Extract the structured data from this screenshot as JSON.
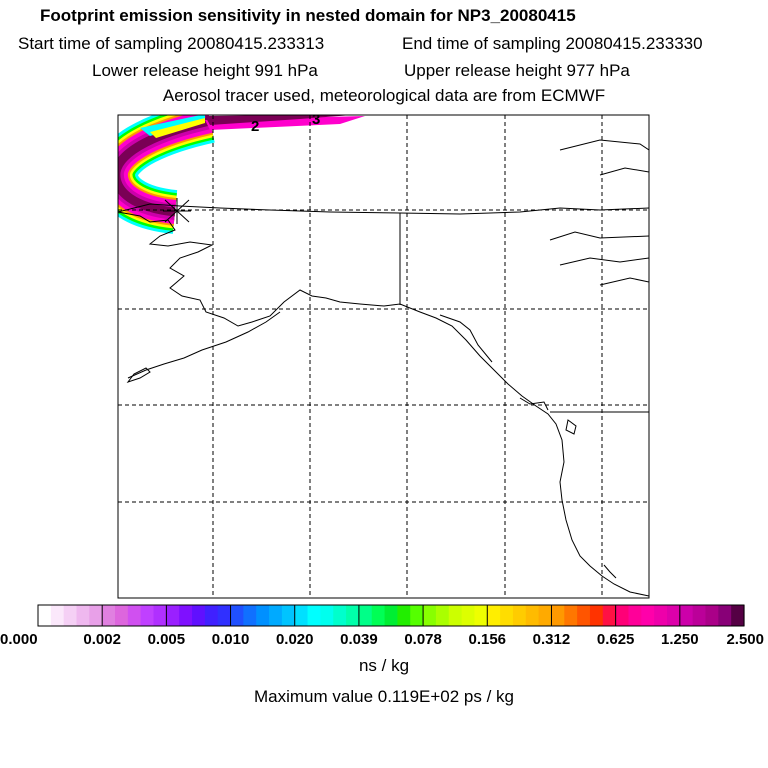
{
  "header": {
    "title": "Footprint emission sensitivity in nested domain for NP3_20080415",
    "start_label": "Start time of sampling 20080415.233313",
    "end_label": "End time of sampling 20080415.233330",
    "lower_label": "Lower release height  991 hPa",
    "upper_label": "Upper release height  977 hPa",
    "tracer_label": "Aerosol tracer used, meteorological data are from ECMWF"
  },
  "map": {
    "contour_labels": [
      "2",
      "3"
    ],
    "release_marker": "receptor-cross-icon",
    "plume_colors": [
      "#ff00cc",
      "#cc00aa",
      "#990077",
      "#66003f",
      "#00ffff",
      "#00ff00",
      "#ffff00",
      "#ff9900",
      "#ff0000",
      "#9900ff",
      "#3333ff"
    ]
  },
  "colorbar": {
    "tick_labels": [
      "0.000",
      "0.002",
      "0.005",
      "0.010",
      "0.020",
      "0.039",
      "0.078",
      "0.156",
      "0.312",
      "0.625",
      "1.250",
      "2.500"
    ],
    "segment_colors": [
      [
        "#ffffff",
        "#fbe8fb",
        "#f5d0f5",
        "#efb8ef",
        "#e8a0e8"
      ],
      [
        "#e080e0",
        "#dd66dd",
        "#d050f0",
        "#c040ff",
        "#b030ff"
      ],
      [
        "#9a20ff",
        "#7f10ff",
        "#6010ff",
        "#4020ff",
        "#3030ff"
      ],
      [
        "#2050ff",
        "#1070ff",
        "#0090ff",
        "#00aaff",
        "#00c4ff"
      ],
      [
        "#00e0ff",
        "#00ffff",
        "#00ffee",
        "#00ffcc",
        "#00ffaa"
      ],
      [
        "#00ff88",
        "#00ff55",
        "#00ee33",
        "#22ee00",
        "#55ff00"
      ],
      [
        "#88ff00",
        "#aaff00",
        "#ccff00",
        "#ddff00",
        "#eeff00"
      ],
      [
        "#ffee00",
        "#ffdd00",
        "#ffcc00",
        "#ffbb00",
        "#ffaa00"
      ],
      [
        "#ff9900",
        "#ff7700",
        "#ff5500",
        "#ff3300",
        "#ff1144"
      ],
      [
        "#ff0077",
        "#ff0099",
        "#ff00aa",
        "#ee00aa",
        "#dd00aa"
      ],
      [
        "#cc00aa",
        "#bb0099",
        "#aa0088",
        "#880077",
        "#550044"
      ]
    ],
    "unit": "ns / kg",
    "max_value_label": "Maximum value  0.119E+02 ps / kg"
  }
}
